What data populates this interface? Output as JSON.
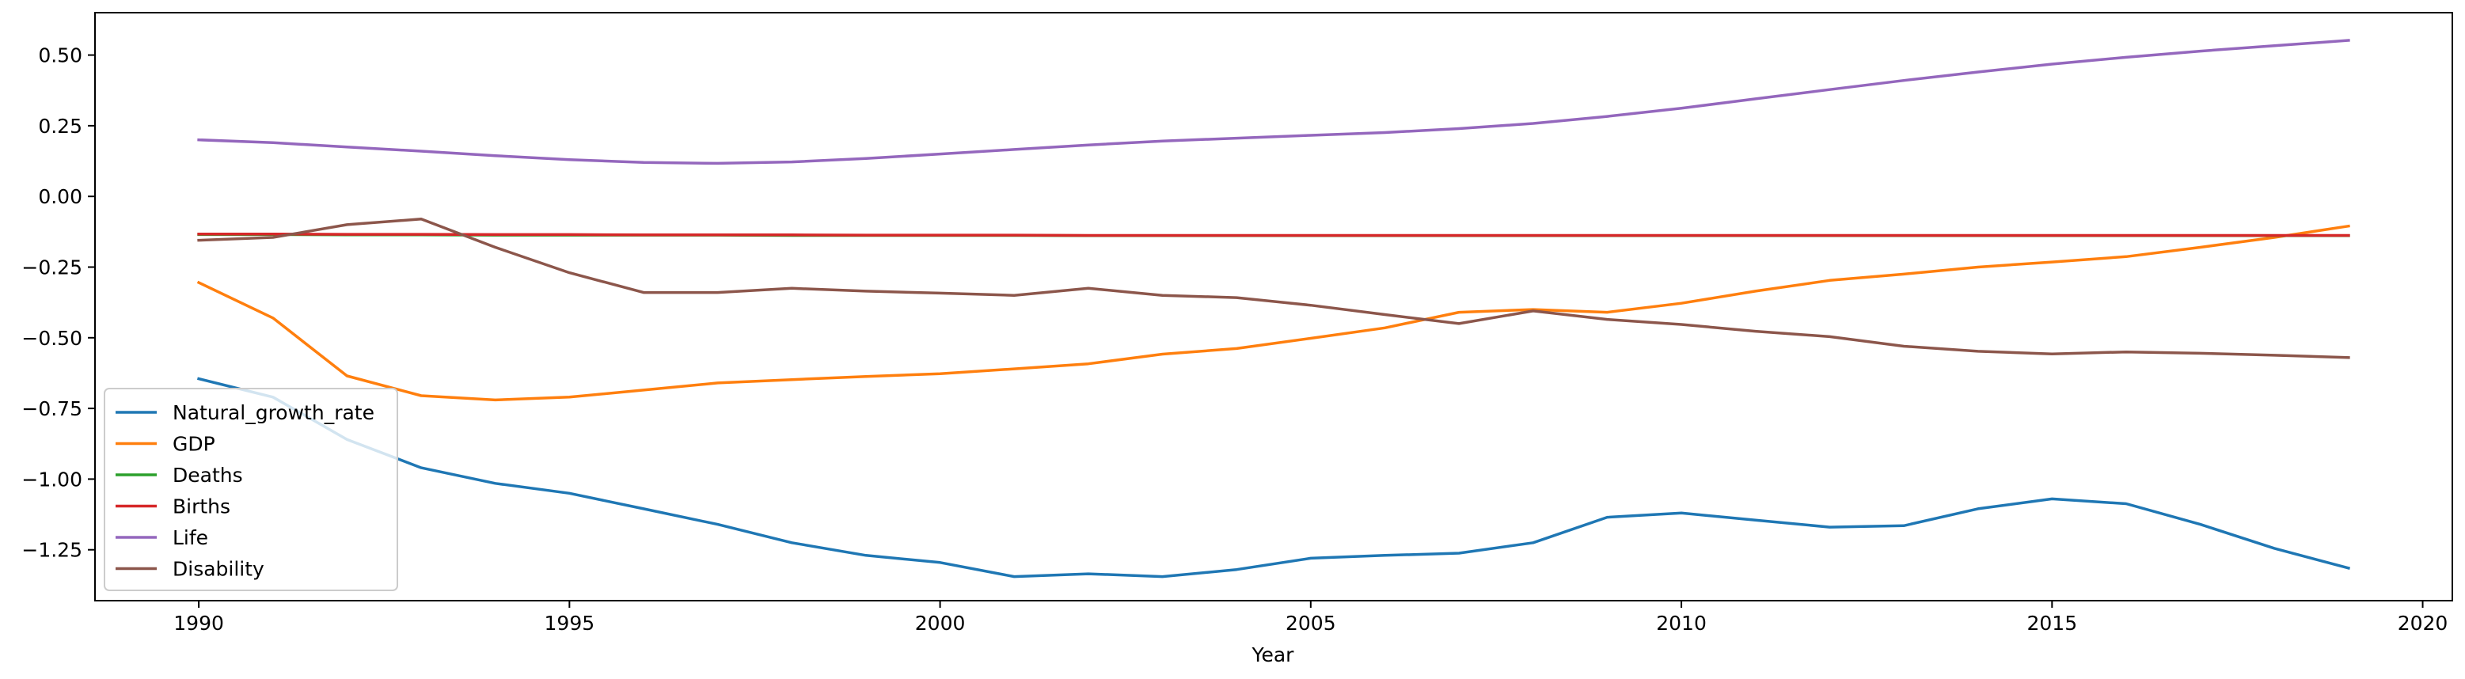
{
  "chart_data": {
    "type": "line",
    "title": "",
    "xlabel": "Year",
    "ylabel": "",
    "xlim": [
      1988.6,
      2020.4
    ],
    "ylim": [
      -1.43,
      0.65
    ],
    "x_ticks": [
      1990,
      1995,
      2000,
      2005,
      2010,
      2015,
      2020
    ],
    "y_ticks": [
      0.5,
      0.25,
      0.0,
      -0.25,
      -0.5,
      -0.75,
      -1.0,
      -1.25
    ],
    "y_tick_labels": [
      "0.50",
      "0.25",
      "0.00",
      "−0.25",
      "−0.50",
      "−0.75",
      "−1.00",
      "−1.25"
    ],
    "grid": false,
    "legend_position": "lower-left",
    "x": [
      1990,
      1991,
      1992,
      1993,
      1994,
      1995,
      1996,
      1997,
      1998,
      1999,
      2000,
      2001,
      2002,
      2003,
      2004,
      2005,
      2006,
      2007,
      2008,
      2009,
      2010,
      2011,
      2012,
      2013,
      2014,
      2015,
      2016,
      2017,
      2018,
      2019
    ],
    "series": [
      {
        "name": "Natural_growth_rate",
        "color": "#1f77b4",
        "values": [
          -0.645,
          -0.71,
          -0.86,
          -0.96,
          -1.015,
          -1.05,
          -1.105,
          -1.16,
          -1.225,
          -1.27,
          -1.295,
          -1.345,
          -1.335,
          -1.345,
          -1.32,
          -1.28,
          -1.27,
          -1.262,
          -1.225,
          -1.135,
          -1.12,
          -1.145,
          -1.17,
          -1.165,
          -1.105,
          -1.07,
          -1.087,
          -1.16,
          -1.245,
          -1.315
        ]
      },
      {
        "name": "GDP",
        "color": "#ff7f0e",
        "values": [
          -0.305,
          -0.43,
          -0.635,
          -0.705,
          -0.72,
          -0.71,
          -0.685,
          -0.66,
          -0.648,
          -0.637,
          -0.627,
          -0.61,
          -0.592,
          -0.558,
          -0.538,
          -0.502,
          -0.465,
          -0.41,
          -0.4,
          -0.41,
          -0.378,
          -0.335,
          -0.297,
          -0.275,
          -0.25,
          -0.232,
          -0.213,
          -0.18,
          -0.145,
          -0.105
        ]
      },
      {
        "name": "Deaths",
        "color": "#2ca02c",
        "values": [
          -0.135,
          -0.135,
          -0.136,
          -0.136,
          -0.137,
          -0.137,
          -0.137,
          -0.137,
          -0.138,
          -0.138,
          -0.138,
          -0.138,
          -0.139,
          -0.139,
          -0.139,
          -0.139,
          -0.139,
          -0.139,
          -0.139,
          -0.139,
          -0.139,
          -0.139,
          -0.139,
          -0.139,
          -0.139,
          -0.139,
          -0.139,
          -0.139,
          -0.139,
          -0.139
        ]
      },
      {
        "name": "Births",
        "color": "#d62728",
        "values": [
          -0.133,
          -0.133,
          -0.134,
          -0.134,
          -0.135,
          -0.135,
          -0.136,
          -0.136,
          -0.136,
          -0.137,
          -0.137,
          -0.137,
          -0.138,
          -0.138,
          -0.138,
          -0.138,
          -0.138,
          -0.138,
          -0.138,
          -0.138,
          -0.138,
          -0.138,
          -0.138,
          -0.138,
          -0.138,
          -0.138,
          -0.138,
          -0.138,
          -0.138,
          -0.138
        ]
      },
      {
        "name": "Life",
        "color": "#9467bd",
        "values": [
          0.2,
          0.19,
          0.175,
          0.16,
          0.144,
          0.13,
          0.12,
          0.117,
          0.122,
          0.134,
          0.15,
          0.166,
          0.182,
          0.196,
          0.206,
          0.216,
          0.226,
          0.24,
          0.258,
          0.283,
          0.312,
          0.345,
          0.378,
          0.41,
          0.44,
          0.468,
          0.492,
          0.514,
          0.533,
          0.552
        ]
      },
      {
        "name": "Disability",
        "color": "#8c564b",
        "values": [
          -0.155,
          -0.145,
          -0.1,
          -0.08,
          -0.18,
          -0.27,
          -0.34,
          -0.34,
          -0.325,
          -0.335,
          -0.342,
          -0.35,
          -0.325,
          -0.35,
          -0.358,
          -0.385,
          -0.418,
          -0.45,
          -0.405,
          -0.435,
          -0.453,
          -0.477,
          -0.496,
          -0.53,
          -0.548,
          -0.557,
          -0.55,
          -0.555,
          -0.562,
          -0.57
        ]
      }
    ]
  }
}
